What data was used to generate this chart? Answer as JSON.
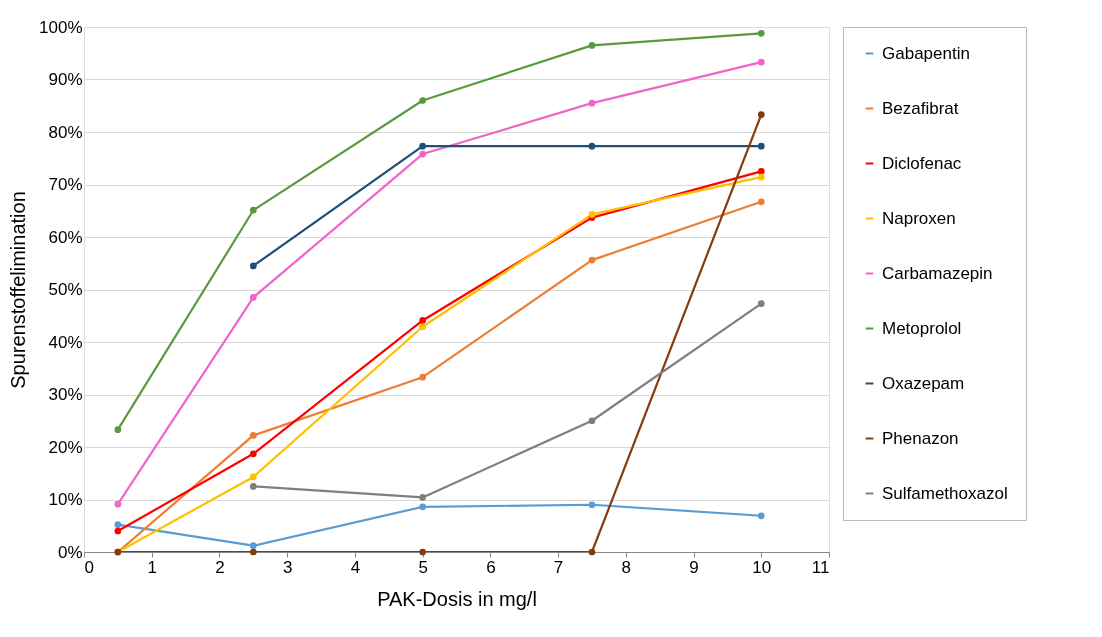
{
  "chart_data": {
    "type": "line",
    "xlabel": "PAK-Dosis in mg/l",
    "ylabel": "Spurenstoffelimination",
    "x": [
      0.5,
      2.5,
      5,
      7.5,
      10
    ],
    "series": [
      {
        "name": "Gabapentin",
        "color": "#5b9bd5",
        "values": [
          5.2,
          1.2,
          8.6,
          9.0,
          6.9
        ]
      },
      {
        "name": "Bezafibrat",
        "color": "#ed7d31",
        "values": [
          0,
          22.2,
          33.3,
          55.6,
          66.7
        ]
      },
      {
        "name": "Diclofenac",
        "color": "#ff0000",
        "values": [
          4.0,
          18.7,
          44.1,
          63.7,
          72.5
        ]
      },
      {
        "name": "Naproxen",
        "color": "#ffc000",
        "values": [
          0,
          14.3,
          42.9,
          64.3,
          71.4
        ]
      },
      {
        "name": "Carbamazepin",
        "color": "#f064c8",
        "values": [
          9.1,
          48.5,
          75.8,
          85.5,
          93.3
        ]
      },
      {
        "name": "Metoprolol",
        "color": "#5a9a3c",
        "values": [
          23.3,
          65.1,
          86.0,
          96.5,
          98.8
        ]
      },
      {
        "name": "Oxazepam",
        "color": "#1f4e79",
        "values": [
          null,
          54.5,
          77.3,
          77.3,
          77.3
        ]
      },
      {
        "name": "Phenazon",
        "color": "#843c0c",
        "values": [
          0,
          0,
          0,
          0,
          83.3
        ]
      },
      {
        "name": "Sulfamethoxazol",
        "color": "#7f7f7f",
        "values": [
          null,
          12.5,
          10.4,
          25.0,
          47.3
        ]
      }
    ],
    "xlim": [
      0,
      11
    ],
    "xticks": [
      0,
      1,
      2,
      3,
      4,
      5,
      6,
      7,
      8,
      9,
      10,
      11
    ],
    "ylim": [
      0,
      100
    ],
    "yticks": [
      {
        "value": 0,
        "label": "0%"
      },
      {
        "value": 10,
        "label": "10%"
      },
      {
        "value": 20,
        "label": "20%"
      },
      {
        "value": 30,
        "label": "30%"
      },
      {
        "value": 40,
        "label": "40%"
      },
      {
        "value": 50,
        "label": "50%"
      },
      {
        "value": 60,
        "label": "60%"
      },
      {
        "value": 70,
        "label": "70%"
      },
      {
        "value": 80,
        "label": "80%"
      },
      {
        "value": 90,
        "label": "90%"
      },
      {
        "value": 100,
        "label": "100%"
      }
    ],
    "grid": "y",
    "legend": "right",
    "marker": "circle",
    "line_style": "solid"
  }
}
